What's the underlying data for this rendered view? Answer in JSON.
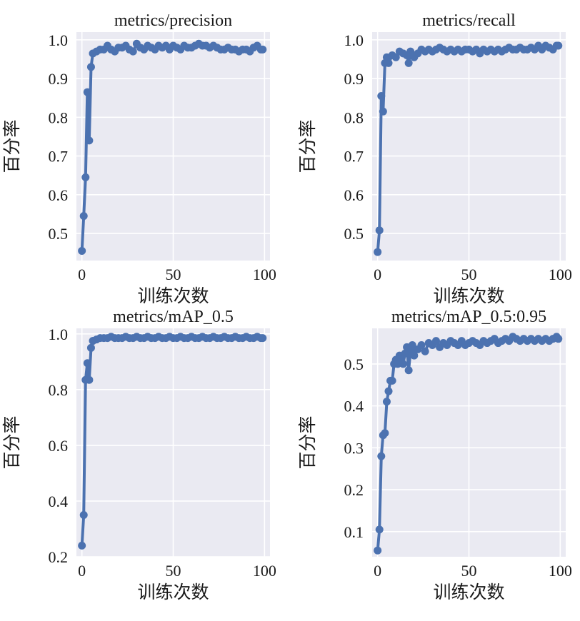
{
  "colors": {
    "panel_bg": "#eaeaf2",
    "grid": "#ffffff",
    "line": "#4c72b0"
  },
  "chart_data": [
    {
      "type": "line",
      "title": "metrics/precision",
      "xlabel": "训练次数",
      "ylabel": "百分率",
      "xlim": [
        -3,
        103
      ],
      "ylim": [
        0.43,
        1.02
      ],
      "xticks": [
        0,
        50,
        100
      ],
      "yticks": [
        0.5,
        0.6,
        0.7,
        0.8,
        0.9,
        1.0
      ],
      "ytick_labels": [
        "0.5",
        "0.6",
        "0.7",
        "0.8",
        "0.9",
        "1.0"
      ],
      "grid": true,
      "series": [
        {
          "x": [
            0,
            1,
            2,
            3,
            4,
            5,
            6,
            8,
            10,
            12,
            14,
            16,
            18,
            20,
            22,
            24,
            26,
            28,
            30,
            32,
            34,
            36,
            38,
            40,
            42,
            44,
            46,
            48,
            50,
            52,
            54,
            56,
            58,
            60,
            62,
            64,
            66,
            68,
            70,
            72,
            74,
            76,
            78,
            80,
            82,
            84,
            86,
            88,
            90,
            92,
            94,
            96,
            98,
            99
          ],
          "y": [
            0.455,
            0.545,
            0.645,
            0.865,
            0.74,
            0.93,
            0.965,
            0.97,
            0.975,
            0.975,
            0.985,
            0.975,
            0.97,
            0.98,
            0.98,
            0.985,
            0.975,
            0.97,
            0.99,
            0.98,
            0.975,
            0.985,
            0.98,
            0.975,
            0.985,
            0.98,
            0.985,
            0.975,
            0.985,
            0.98,
            0.975,
            0.985,
            0.98,
            0.98,
            0.985,
            0.99,
            0.985,
            0.985,
            0.98,
            0.985,
            0.98,
            0.975,
            0.975,
            0.98,
            0.975,
            0.975,
            0.97,
            0.975,
            0.975,
            0.97,
            0.98,
            0.985,
            0.975,
            0.975
          ]
        }
      ]
    },
    {
      "type": "line",
      "title": "metrics/recall",
      "xlabel": "训练次数",
      "ylabel": "百分率",
      "xlim": [
        -3,
        103
      ],
      "ylim": [
        0.43,
        1.02
      ],
      "xticks": [
        0,
        50,
        100
      ],
      "yticks": [
        0.5,
        0.6,
        0.7,
        0.8,
        0.9,
        1.0
      ],
      "ytick_labels": [
        "0.5",
        "0.6",
        "0.7",
        "0.8",
        "0.9",
        "1.0"
      ],
      "grid": true,
      "series": [
        {
          "x": [
            0,
            1,
            2,
            3,
            4,
            5,
            6,
            8,
            10,
            12,
            14,
            16,
            17,
            18,
            20,
            22,
            24,
            26,
            28,
            30,
            32,
            34,
            36,
            38,
            40,
            42,
            44,
            46,
            48,
            50,
            52,
            54,
            56,
            58,
            60,
            62,
            64,
            66,
            68,
            70,
            72,
            74,
            76,
            78,
            80,
            82,
            84,
            86,
            88,
            90,
            92,
            94,
            96,
            98,
            99
          ],
          "y": [
            0.452,
            0.508,
            0.855,
            0.815,
            0.94,
            0.955,
            0.94,
            0.96,
            0.955,
            0.97,
            0.965,
            0.96,
            0.94,
            0.97,
            0.955,
            0.965,
            0.975,
            0.97,
            0.975,
            0.97,
            0.975,
            0.98,
            0.975,
            0.97,
            0.975,
            0.97,
            0.975,
            0.97,
            0.975,
            0.975,
            0.97,
            0.975,
            0.965,
            0.975,
            0.97,
            0.975,
            0.97,
            0.975,
            0.97,
            0.975,
            0.98,
            0.975,
            0.975,
            0.98,
            0.975,
            0.975,
            0.98,
            0.975,
            0.985,
            0.975,
            0.985,
            0.98,
            0.975,
            0.985,
            0.985
          ]
        }
      ]
    },
    {
      "type": "line",
      "title": "metrics/mAP_0.5",
      "xlabel": "训练次数",
      "ylabel": "百分率",
      "xlim": [
        -3,
        103
      ],
      "ylim": [
        0.2,
        1.02
      ],
      "xticks": [
        0,
        50,
        100
      ],
      "yticks": [
        0.2,
        0.4,
        0.6,
        0.8,
        1.0
      ],
      "ytick_labels": [
        "0.2",
        "0.4",
        "0.6",
        "0.8",
        "1.0"
      ],
      "grid": true,
      "series": [
        {
          "x": [
            0,
            1,
            2,
            3,
            4,
            5,
            6,
            8,
            10,
            12,
            14,
            16,
            18,
            20,
            22,
            24,
            26,
            28,
            30,
            32,
            34,
            36,
            38,
            40,
            42,
            44,
            46,
            48,
            50,
            52,
            54,
            56,
            58,
            60,
            62,
            64,
            66,
            68,
            70,
            72,
            74,
            76,
            78,
            80,
            82,
            84,
            86,
            88,
            90,
            92,
            94,
            96,
            98,
            99
          ],
          "y": [
            0.24,
            0.35,
            0.835,
            0.895,
            0.835,
            0.95,
            0.975,
            0.98,
            0.985,
            0.985,
            0.985,
            0.99,
            0.985,
            0.985,
            0.985,
            0.99,
            0.985,
            0.985,
            0.99,
            0.985,
            0.985,
            0.99,
            0.985,
            0.985,
            0.99,
            0.985,
            0.985,
            0.99,
            0.985,
            0.985,
            0.99,
            0.985,
            0.985,
            0.99,
            0.985,
            0.985,
            0.99,
            0.985,
            0.985,
            0.99,
            0.985,
            0.985,
            0.99,
            0.985,
            0.985,
            0.99,
            0.985,
            0.985,
            0.99,
            0.985,
            0.985,
            0.99,
            0.985,
            0.985
          ]
        }
      ]
    },
    {
      "type": "line",
      "title": "metrics/mAP_0.5:0.95",
      "xlabel": "训练次数",
      "ylabel": "百分率",
      "xlim": [
        -3,
        103
      ],
      "ylim": [
        0.04,
        0.585
      ],
      "xticks": [
        0,
        50,
        100
      ],
      "yticks": [
        0.1,
        0.2,
        0.3,
        0.4,
        0.5
      ],
      "ytick_labels": [
        "0.1",
        "0.2",
        "0.3",
        "0.4",
        "0.5"
      ],
      "grid": true,
      "series": [
        {
          "x": [
            0,
            1,
            2,
            3,
            4,
            5,
            6,
            7,
            8,
            9,
            10,
            11,
            12,
            13,
            14,
            15,
            16,
            17,
            18,
            19,
            20,
            22,
            24,
            26,
            28,
            30,
            32,
            34,
            36,
            38,
            40,
            42,
            44,
            46,
            48,
            50,
            52,
            54,
            56,
            58,
            60,
            62,
            64,
            66,
            68,
            70,
            72,
            74,
            76,
            78,
            80,
            82,
            84,
            86,
            88,
            90,
            92,
            94,
            96,
            98,
            99
          ],
          "y": [
            0.055,
            0.105,
            0.28,
            0.33,
            0.335,
            0.41,
            0.435,
            0.46,
            0.46,
            0.5,
            0.51,
            0.5,
            0.52,
            0.51,
            0.5,
            0.525,
            0.54,
            0.485,
            0.53,
            0.545,
            0.52,
            0.535,
            0.545,
            0.53,
            0.55,
            0.545,
            0.555,
            0.54,
            0.55,
            0.545,
            0.555,
            0.55,
            0.545,
            0.555,
            0.545,
            0.55,
            0.555,
            0.55,
            0.545,
            0.555,
            0.55,
            0.555,
            0.56,
            0.55,
            0.555,
            0.56,
            0.555,
            0.565,
            0.56,
            0.555,
            0.56,
            0.555,
            0.56,
            0.555,
            0.56,
            0.555,
            0.56,
            0.555,
            0.56,
            0.565,
            0.56
          ]
        }
      ]
    }
  ]
}
